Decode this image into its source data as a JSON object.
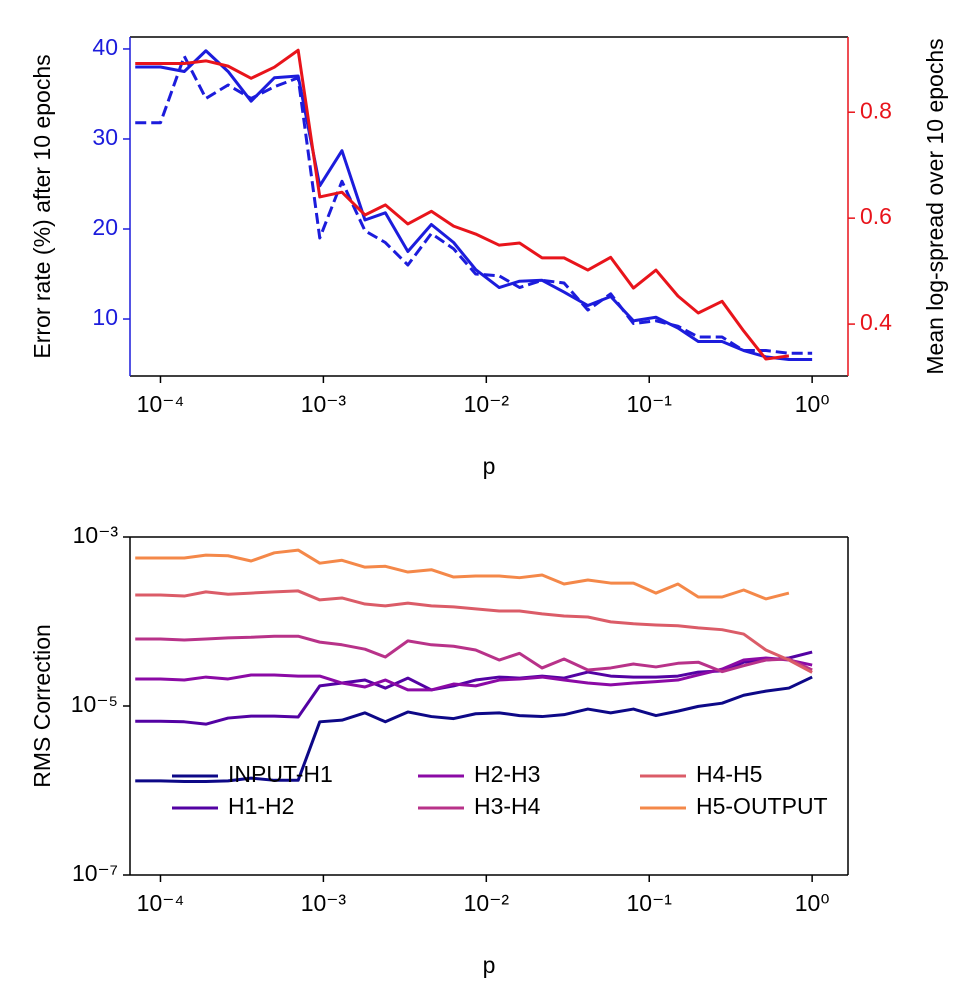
{
  "chart_data": [
    {
      "type": "line",
      "xlabel": "p",
      "ylabel": "Error rate (%) after 10 epochs",
      "y2label": "Mean log-spread over 10 epochs",
      "xscale": "log",
      "xlim": [
        6.5e-05,
        1.66
      ],
      "xticks": [
        {
          "value": 0.0001,
          "label": "10⁻⁴"
        },
        {
          "value": 0.001,
          "label": "10⁻³"
        },
        {
          "value": 0.01,
          "label": "10⁻²"
        },
        {
          "value": 0.1,
          "label": "10⁻¹"
        },
        {
          "value": 1,
          "label": "10⁰"
        }
      ],
      "ylim": [
        3.67,
        41.33
      ],
      "yticks": [
        10,
        20,
        30,
        40
      ],
      "ycolor": "#1c1cdc",
      "y2lim": [
        0.302,
        0.942
      ],
      "y2ticks": [
        0.4,
        0.6,
        0.8
      ],
      "y2color": "#e8141b",
      "x": [
        7e-05,
        0.0001,
        0.00014,
        0.00019,
        0.00026,
        0.00036,
        0.0005,
        0.0007,
        0.00095,
        0.0013,
        0.0018,
        0.0024,
        0.0033,
        0.0046,
        0.0063,
        0.0086,
        0.012,
        0.016,
        0.022,
        0.03,
        0.042,
        0.058,
        0.08,
        0.11,
        0.15,
        0.2,
        0.28,
        0.38,
        0.52,
        0.72,
        1.0
      ],
      "series": [
        {
          "color": "#1c1cdc",
          "linestyle": "solid",
          "values": [
            38,
            38,
            37.5,
            39.8,
            37.5,
            34.2,
            36.8,
            37,
            24.8,
            28.7,
            21,
            21.8,
            17.5,
            20.5,
            18.5,
            15.5,
            13.5,
            14.2,
            14.3,
            13,
            11.5,
            12.5,
            9.8,
            10.2,
            9,
            7.5,
            7.5,
            6.5,
            5.8,
            5.5,
            5.5
          ]
        },
        {
          "color": "#1c1cdc",
          "linestyle": "dashed",
          "values": [
            31.8,
            31.8,
            39.2,
            34.5,
            36,
            34.5,
            35.8,
            36.8,
            19,
            25.3,
            19.8,
            18.5,
            16,
            19.5,
            17.8,
            15,
            14.8,
            13.5,
            14.3,
            14,
            11,
            12.8,
            9.5,
            9.8,
            9.2,
            8,
            8,
            6.5,
            6.5,
            6.2,
            6.2
          ]
        },
        {
          "color": "#e8141b",
          "linestyle": "solid",
          "axis": "y2",
          "values": [
            0.892,
            0.892,
            0.892,
            0.897,
            0.887,
            0.864,
            0.885,
            0.917,
            0.64,
            0.649,
            0.606,
            0.625,
            0.589,
            0.613,
            0.585,
            0.57,
            0.549,
            0.553,
            0.525,
            0.525,
            0.502,
            0.526,
            0.468,
            0.502,
            0.453,
            0.421,
            0.443,
            0.387,
            0.334,
            0.34,
            null
          ]
        }
      ]
    },
    {
      "type": "line",
      "xlabel": "p",
      "ylabel": "RMS Correction",
      "xscale": "log",
      "xlim": [
        6.5e-05,
        1.66
      ],
      "xticks": [
        {
          "value": 0.0001,
          "label": "10⁻⁴"
        },
        {
          "value": 0.001,
          "label": "10⁻³"
        },
        {
          "value": 0.01,
          "label": "10⁻²"
        },
        {
          "value": 0.1,
          "label": "10⁻¹"
        },
        {
          "value": 1,
          "label": "10⁰"
        }
      ],
      "yscale": "log",
      "ylim": [
        1e-07,
        0.001
      ],
      "yticks": [
        {
          "value": 1e-07,
          "label": "10⁻⁷"
        },
        {
          "value": 1e-05,
          "label": "10⁻⁵"
        },
        {
          "value": 0.001,
          "label": "10⁻³"
        }
      ],
      "legend": "lower center",
      "x": [
        7e-05,
        0.0001,
        0.00014,
        0.00019,
        0.00026,
        0.00036,
        0.0005,
        0.0007,
        0.00095,
        0.0013,
        0.0018,
        0.0024,
        0.0033,
        0.0046,
        0.0063,
        0.0086,
        0.012,
        0.016,
        0.022,
        0.03,
        0.042,
        0.058,
        0.08,
        0.11,
        0.15,
        0.2,
        0.28,
        0.38,
        0.52,
        0.72,
        1.0
      ],
      "series": [
        {
          "name": "INPUT-H1",
          "color": "#0d0887",
          "values": [
            1.3e-06,
            1.3e-06,
            1.28e-06,
            1.28e-06,
            1.3e-06,
            1.4e-06,
            1.32e-06,
            1.32e-06,
            6.5e-06,
            6.8e-06,
            8.3e-06,
            6.5e-06,
            8.5e-06,
            7.5e-06,
            7.1e-06,
            8.1e-06,
            8.3e-06,
            7.7e-06,
            7.5e-06,
            7.9e-06,
            9.2e-06,
            8.3e-06,
            9.2e-06,
            7.7e-06,
            8.7e-06,
            9.9e-06,
            1.08e-05,
            1.34e-05,
            1.5e-05,
            1.63e-05,
            2.2e-05
          ]
        },
        {
          "name": "H1-H2",
          "color": "#5302a3",
          "values": [
            6.6e-06,
            6.6e-06,
            6.5e-06,
            6.1e-06,
            7.2e-06,
            7.6e-06,
            7.6e-06,
            7.4e-06,
            1.73e-05,
            1.87e-05,
            2.03e-05,
            1.63e-05,
            2.14e-05,
            1.55e-05,
            1.73e-05,
            2.03e-05,
            2.2e-05,
            2.14e-05,
            2.26e-05,
            2.14e-05,
            2.52e-05,
            2.26e-05,
            2.2e-05,
            2.2e-05,
            2.26e-05,
            2.52e-05,
            2.6e-05,
            3.3e-05,
            3.5e-05,
            3.7e-05,
            4.35e-05
          ]
        },
        {
          "name": "H2-H3",
          "color": "#8b0aa5",
          "values": [
            2.09e-05,
            2.09e-05,
            2.03e-05,
            2.2e-05,
            2.09e-05,
            2.33e-05,
            2.33e-05,
            2.26e-05,
            2.26e-05,
            1.87e-05,
            1.68e-05,
            2.03e-05,
            1.55e-05,
            1.55e-05,
            1.82e-05,
            1.73e-05,
            2.03e-05,
            2.09e-05,
            2.2e-05,
            2.03e-05,
            1.87e-05,
            1.78e-05,
            1.87e-05,
            1.94e-05,
            2.03e-05,
            2.33e-05,
            2.73e-05,
            3.5e-05,
            3.7e-05,
            3.5e-05,
            3.05e-05
          ]
        },
        {
          "name": "H3-H4",
          "color": "#b83289",
          "values": [
            6.2e-05,
            6.2e-05,
            6.04e-05,
            6.2e-05,
            6.4e-05,
            6.5e-05,
            6.7e-05,
            6.7e-05,
            5.7e-05,
            5.3e-05,
            4.7e-05,
            3.8e-05,
            5.9e-05,
            5.3e-05,
            5.1e-05,
            4.6e-05,
            3.5e-05,
            4.2e-05,
            2.82e-05,
            3.6e-05,
            2.67e-05,
            2.82e-05,
            3.14e-05,
            2.9e-05,
            3.2e-05,
            3.3e-05,
            2.55e-05,
            3e-05,
            3.5e-05,
            3.6e-05,
            2.67e-05
          ]
        },
        {
          "name": "H4-H5",
          "color": "#db5c68",
          "values": [
            0.000206,
            0.000206,
            0.0002,
            0.000224,
            0.00021,
            0.000217,
            0.000224,
            0.00023,
            0.00018,
            0.00019,
            0.000161,
            0.000153,
            0.000165,
            0.000153,
            0.000149,
            0.000141,
            0.000133,
            0.000133,
            0.000123,
            0.000116,
            0.000113,
            9.9e-05,
            9.4e-05,
            9.1e-05,
            8.9e-05,
            8.4e-05,
            8e-05,
            7.1e-05,
            4.6e-05,
            3.5e-05,
            2.5e-05
          ]
        },
        {
          "name": "H5-OUTPUT",
          "color": "#f48849",
          "values": [
            0.000564,
            0.000564,
            0.000564,
            0.00061,
            0.0006,
            0.00052,
            0.00065,
            0.0007,
            0.00049,
            0.00053,
            0.00044,
            0.00045,
            0.000385,
            0.00041,
            0.000336,
            0.000345,
            0.000345,
            0.00033,
            0.000355,
            0.000278,
            0.00031,
            0.000285,
            0.000285,
            0.000217,
            0.000278,
            0.000195,
            0.000195,
            0.000236,
            0.000185,
            0.000217,
            null
          ]
        }
      ]
    }
  ]
}
